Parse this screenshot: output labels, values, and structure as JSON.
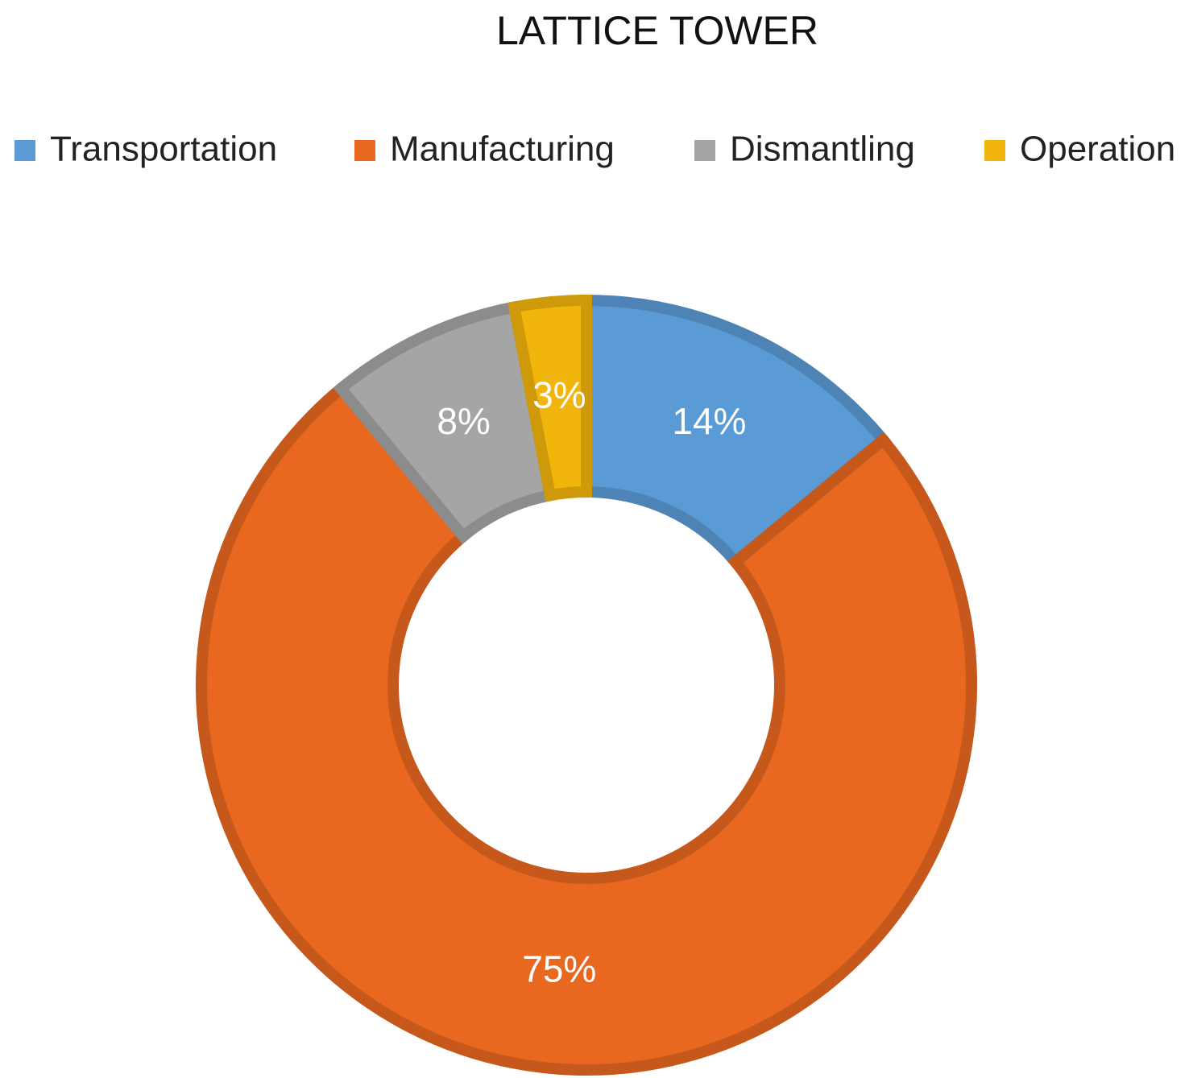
{
  "chart_data": {
    "type": "donut",
    "title": "LATTICE TOWER",
    "categories": [
      "Transportation",
      "Manufacturing",
      "Dismantling",
      "Operation"
    ],
    "values": [
      14,
      75,
      8,
      3
    ],
    "value_labels": [
      "14%",
      "75%",
      "8%",
      "3%"
    ],
    "colors": [
      "#5b9bd5",
      "#e8681f",
      "#a5a5a5",
      "#f2b50c"
    ],
    "legend": "top"
  }
}
